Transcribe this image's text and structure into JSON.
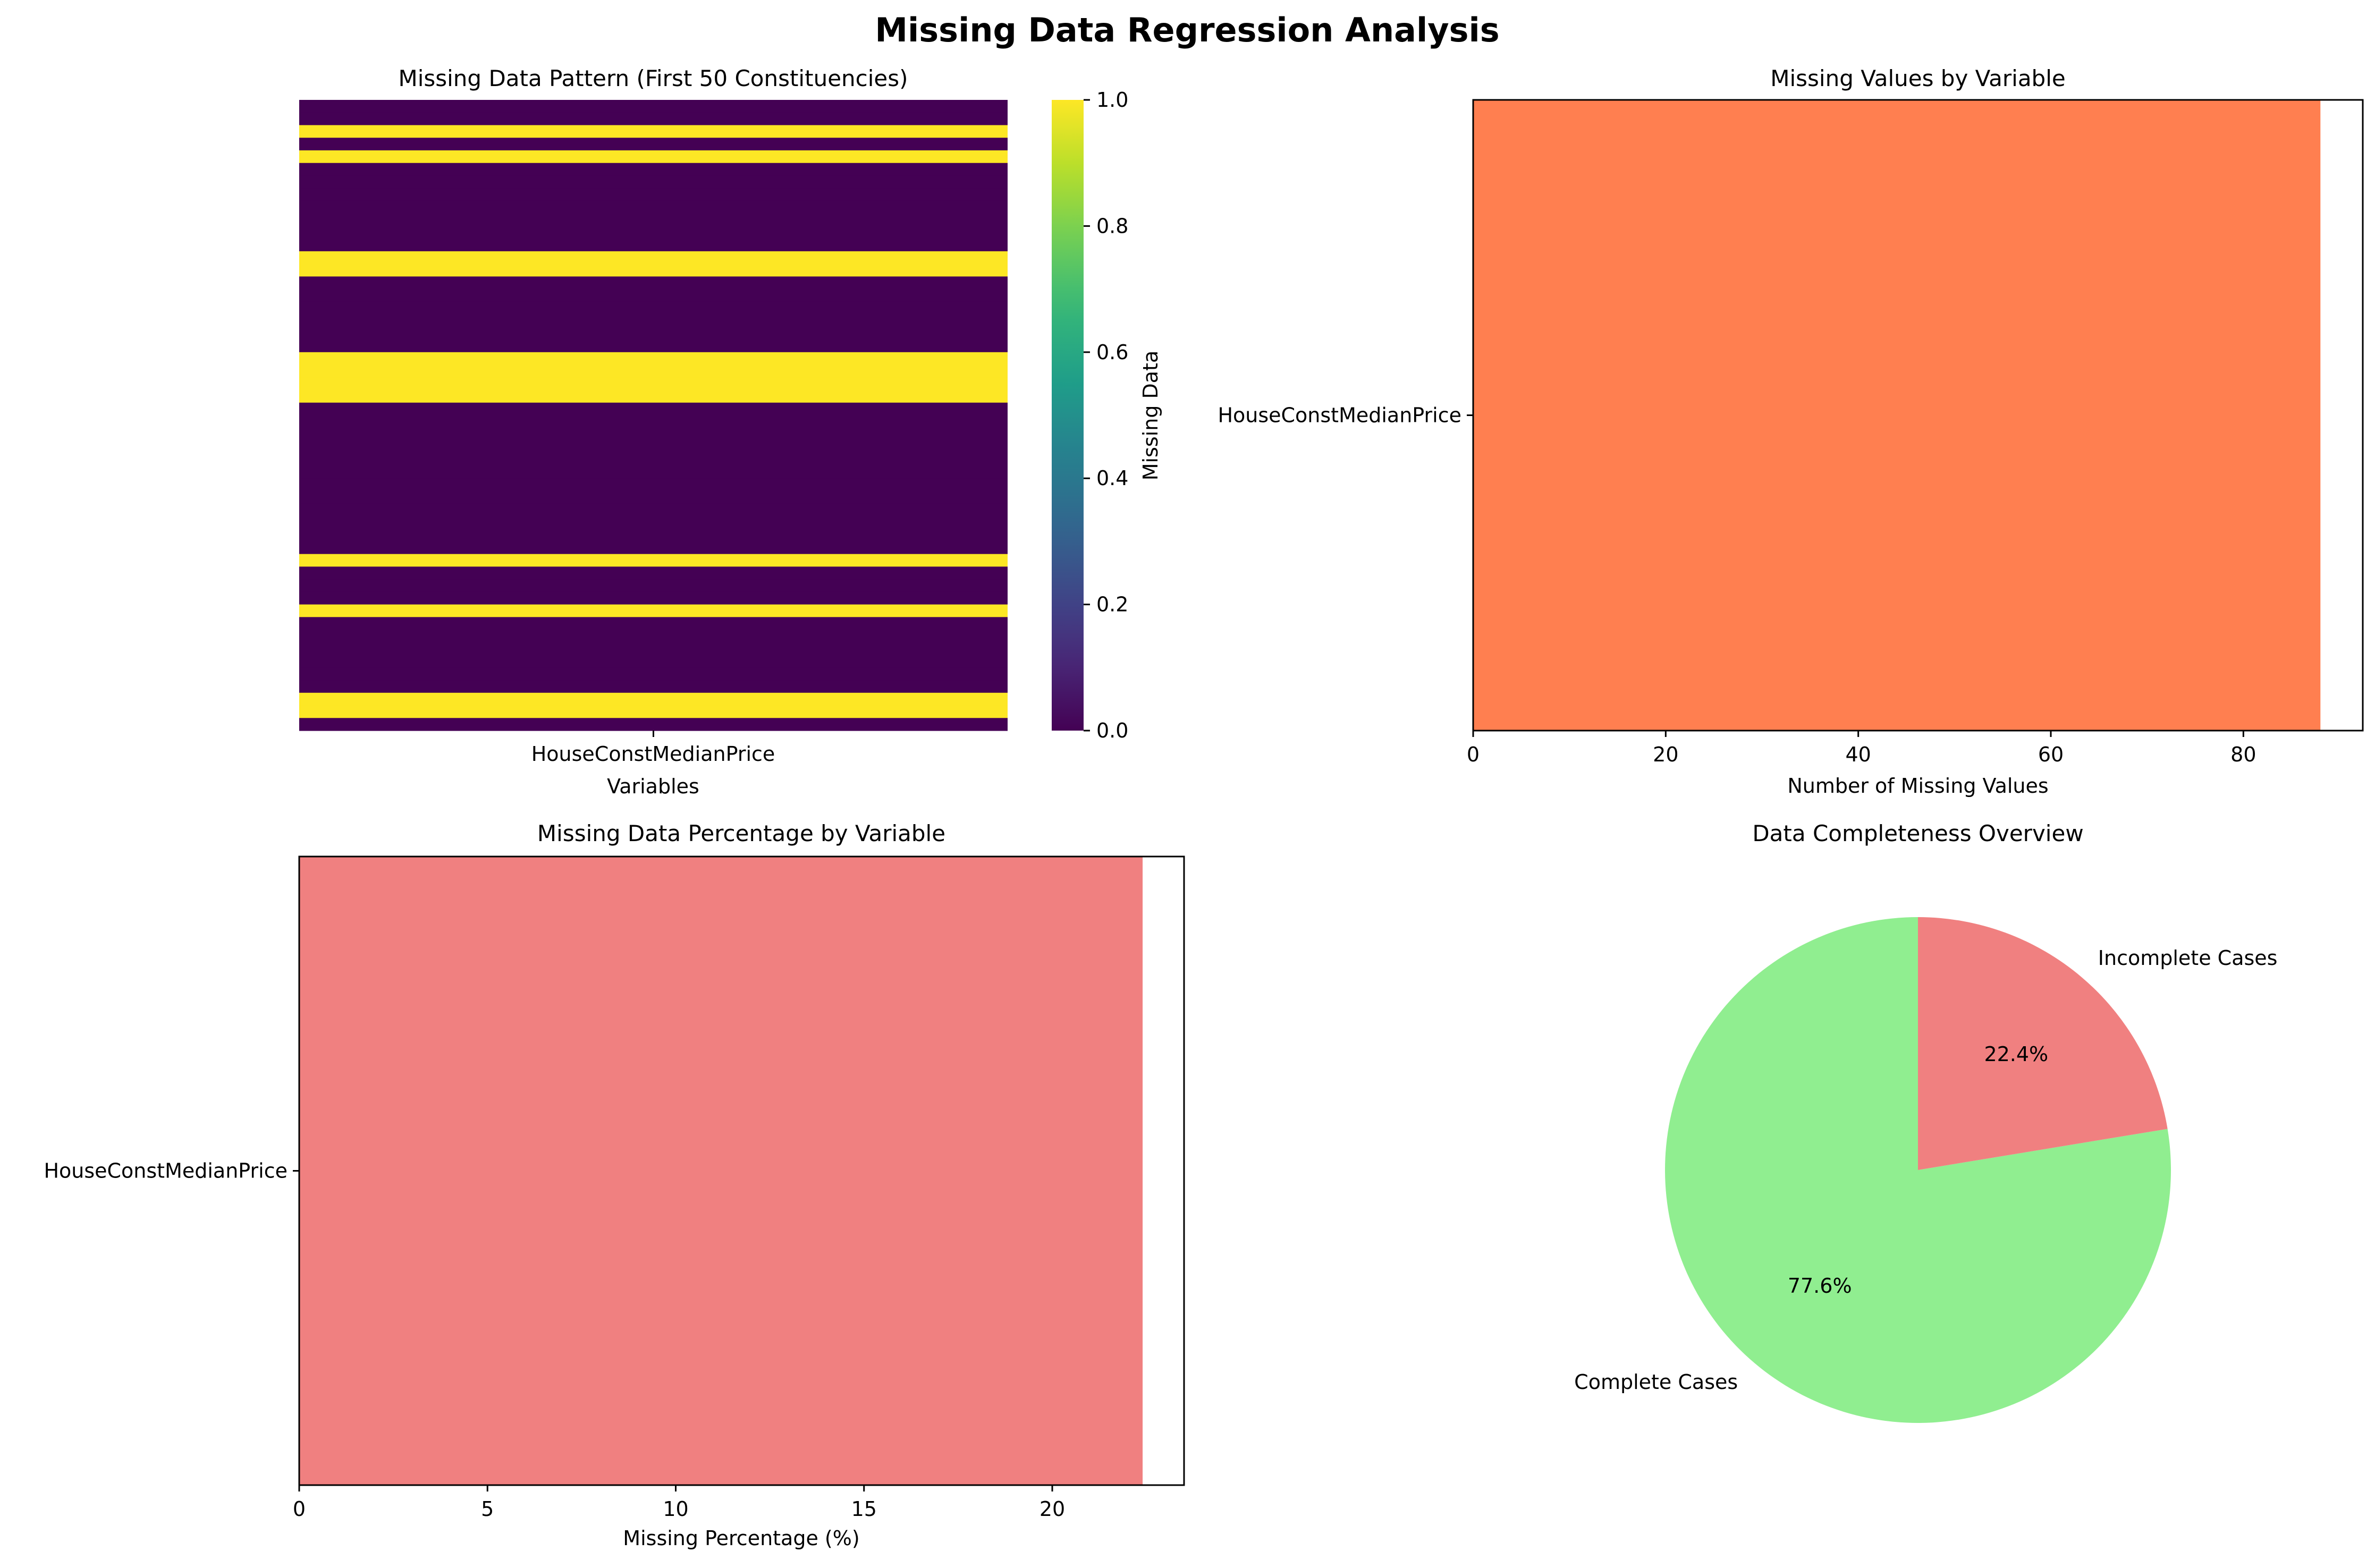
{
  "figure": {
    "title": "Missing Data Regression Analysis"
  },
  "chart_data": [
    {
      "type": "heatmap",
      "title": "Missing Data Pattern (First 50 Constituencies)",
      "xlabel": "Variables",
      "ylabel": "",
      "x_categories": [
        "HouseConstMedianPrice"
      ],
      "rows": 50,
      "values": [
        0,
        0,
        1,
        0,
        1,
        0,
        0,
        0,
        0,
        0,
        0,
        0,
        1,
        1,
        0,
        0,
        0,
        0,
        0,
        0,
        1,
        1,
        1,
        1,
        0,
        0,
        0,
        0,
        0,
        0,
        0,
        0,
        0,
        0,
        0,
        0,
        1,
        0,
        0,
        0,
        1,
        0,
        0,
        0,
        0,
        0,
        0,
        1,
        1,
        0
      ],
      "colormap": "viridis",
      "colorbar": {
        "label": "Missing Data",
        "range": [
          0.0,
          1.0
        ],
        "ticks": [
          "0.0",
          "0.2",
          "0.4",
          "0.6",
          "0.8",
          "1.0"
        ]
      }
    },
    {
      "type": "bar",
      "orientation": "horizontal",
      "title": "Missing Values by Variable",
      "categories": [
        "HouseConstMedianPrice"
      ],
      "values": [
        88
      ],
      "xlabel": "Number of Missing Values",
      "ylabel": "",
      "xlim": [
        0,
        92.4
      ],
      "xticks": [
        "0",
        "20",
        "40",
        "60",
        "80"
      ],
      "color": "#ff7f50"
    },
    {
      "type": "bar",
      "orientation": "horizontal",
      "title": "Missing Data Percentage by Variable",
      "categories": [
        "HouseConstMedianPrice"
      ],
      "values": [
        22.4
      ],
      "xlabel": "Missing Percentage (%)",
      "ylabel": "",
      "xlim": [
        0,
        23.5
      ],
      "xticks": [
        "0",
        "5",
        "10",
        "15",
        "20"
      ],
      "color": "#f08080"
    },
    {
      "type": "pie",
      "title": "Data Completeness Overview",
      "labels": [
        "Complete Cases",
        "Incomplete Cases"
      ],
      "values": [
        77.6,
        22.4
      ],
      "value_labels": [
        "77.6%",
        "22.4%"
      ],
      "colors": [
        "#90ee90",
        "#f08080"
      ],
      "start_angle": 90
    }
  ]
}
